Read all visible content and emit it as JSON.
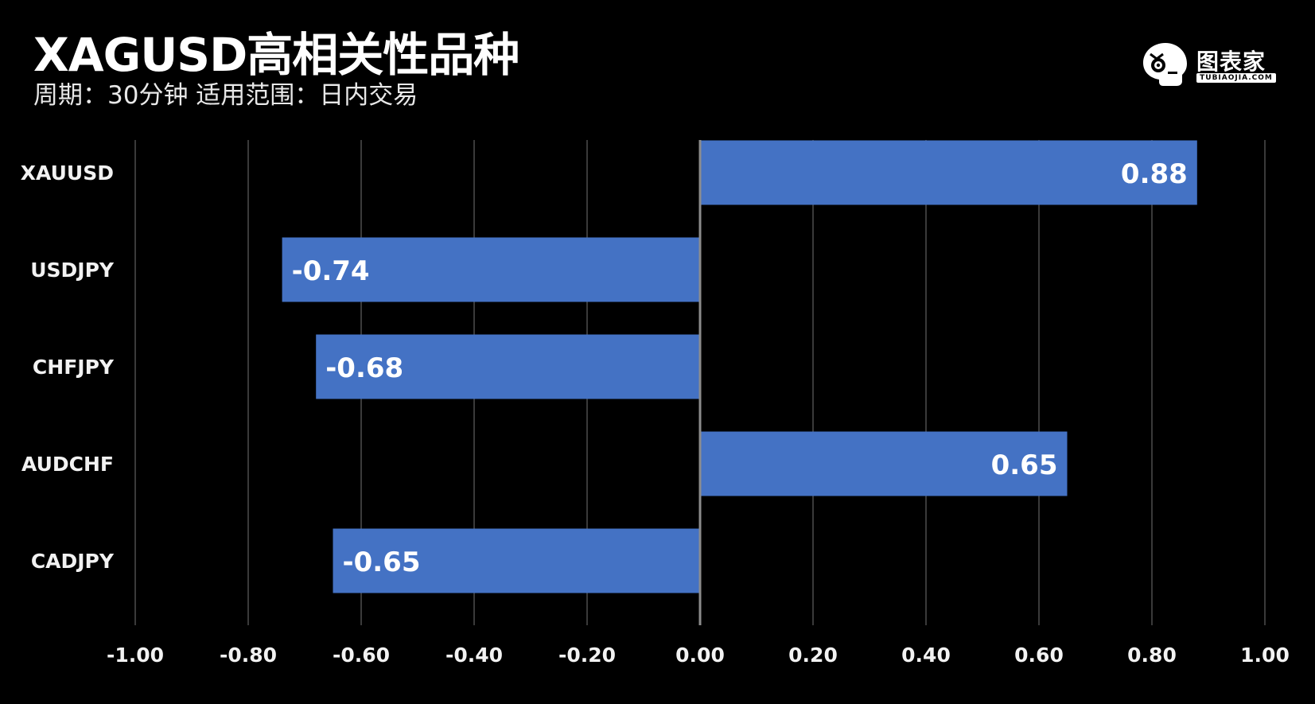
{
  "header": {
    "title": "XAGUSD高相关性品种",
    "subtitle": "周期：30分钟  适用范围：日内交易"
  },
  "logo": {
    "icon": "robot-head-icon",
    "text": "图表家",
    "subtext": "TUBIAOJIA.COM"
  },
  "colors": {
    "background": "#000000",
    "bar": "#4472c4",
    "grid": "#3a3a3a",
    "zero_axis": "#8c8c8c",
    "text": "#f2f2f2"
  },
  "chart_data": {
    "type": "bar",
    "orientation": "horizontal",
    "categories": [
      "XAUUSD",
      "USDJPY",
      "CHFJPY",
      "AUDCHF",
      "CADJPY"
    ],
    "values": [
      0.88,
      -0.74,
      -0.68,
      0.65,
      -0.65
    ],
    "data_labels": [
      "0.88",
      "-0.74",
      "-0.68",
      "0.65",
      "-0.65"
    ],
    "xlim": [
      -1.0,
      1.0
    ],
    "x_ticks": [
      -1.0,
      -0.8,
      -0.6,
      -0.4,
      -0.2,
      0.0,
      0.2,
      0.4,
      0.6,
      0.8,
      1.0
    ],
    "x_tick_labels": [
      "-1.00",
      "-0.80",
      "-0.60",
      "-0.40",
      "-0.20",
      "0.00",
      "0.20",
      "0.40",
      "0.60",
      "0.80",
      "1.00"
    ],
    "grid": "vertical",
    "xlabel": "",
    "ylabel": ""
  }
}
